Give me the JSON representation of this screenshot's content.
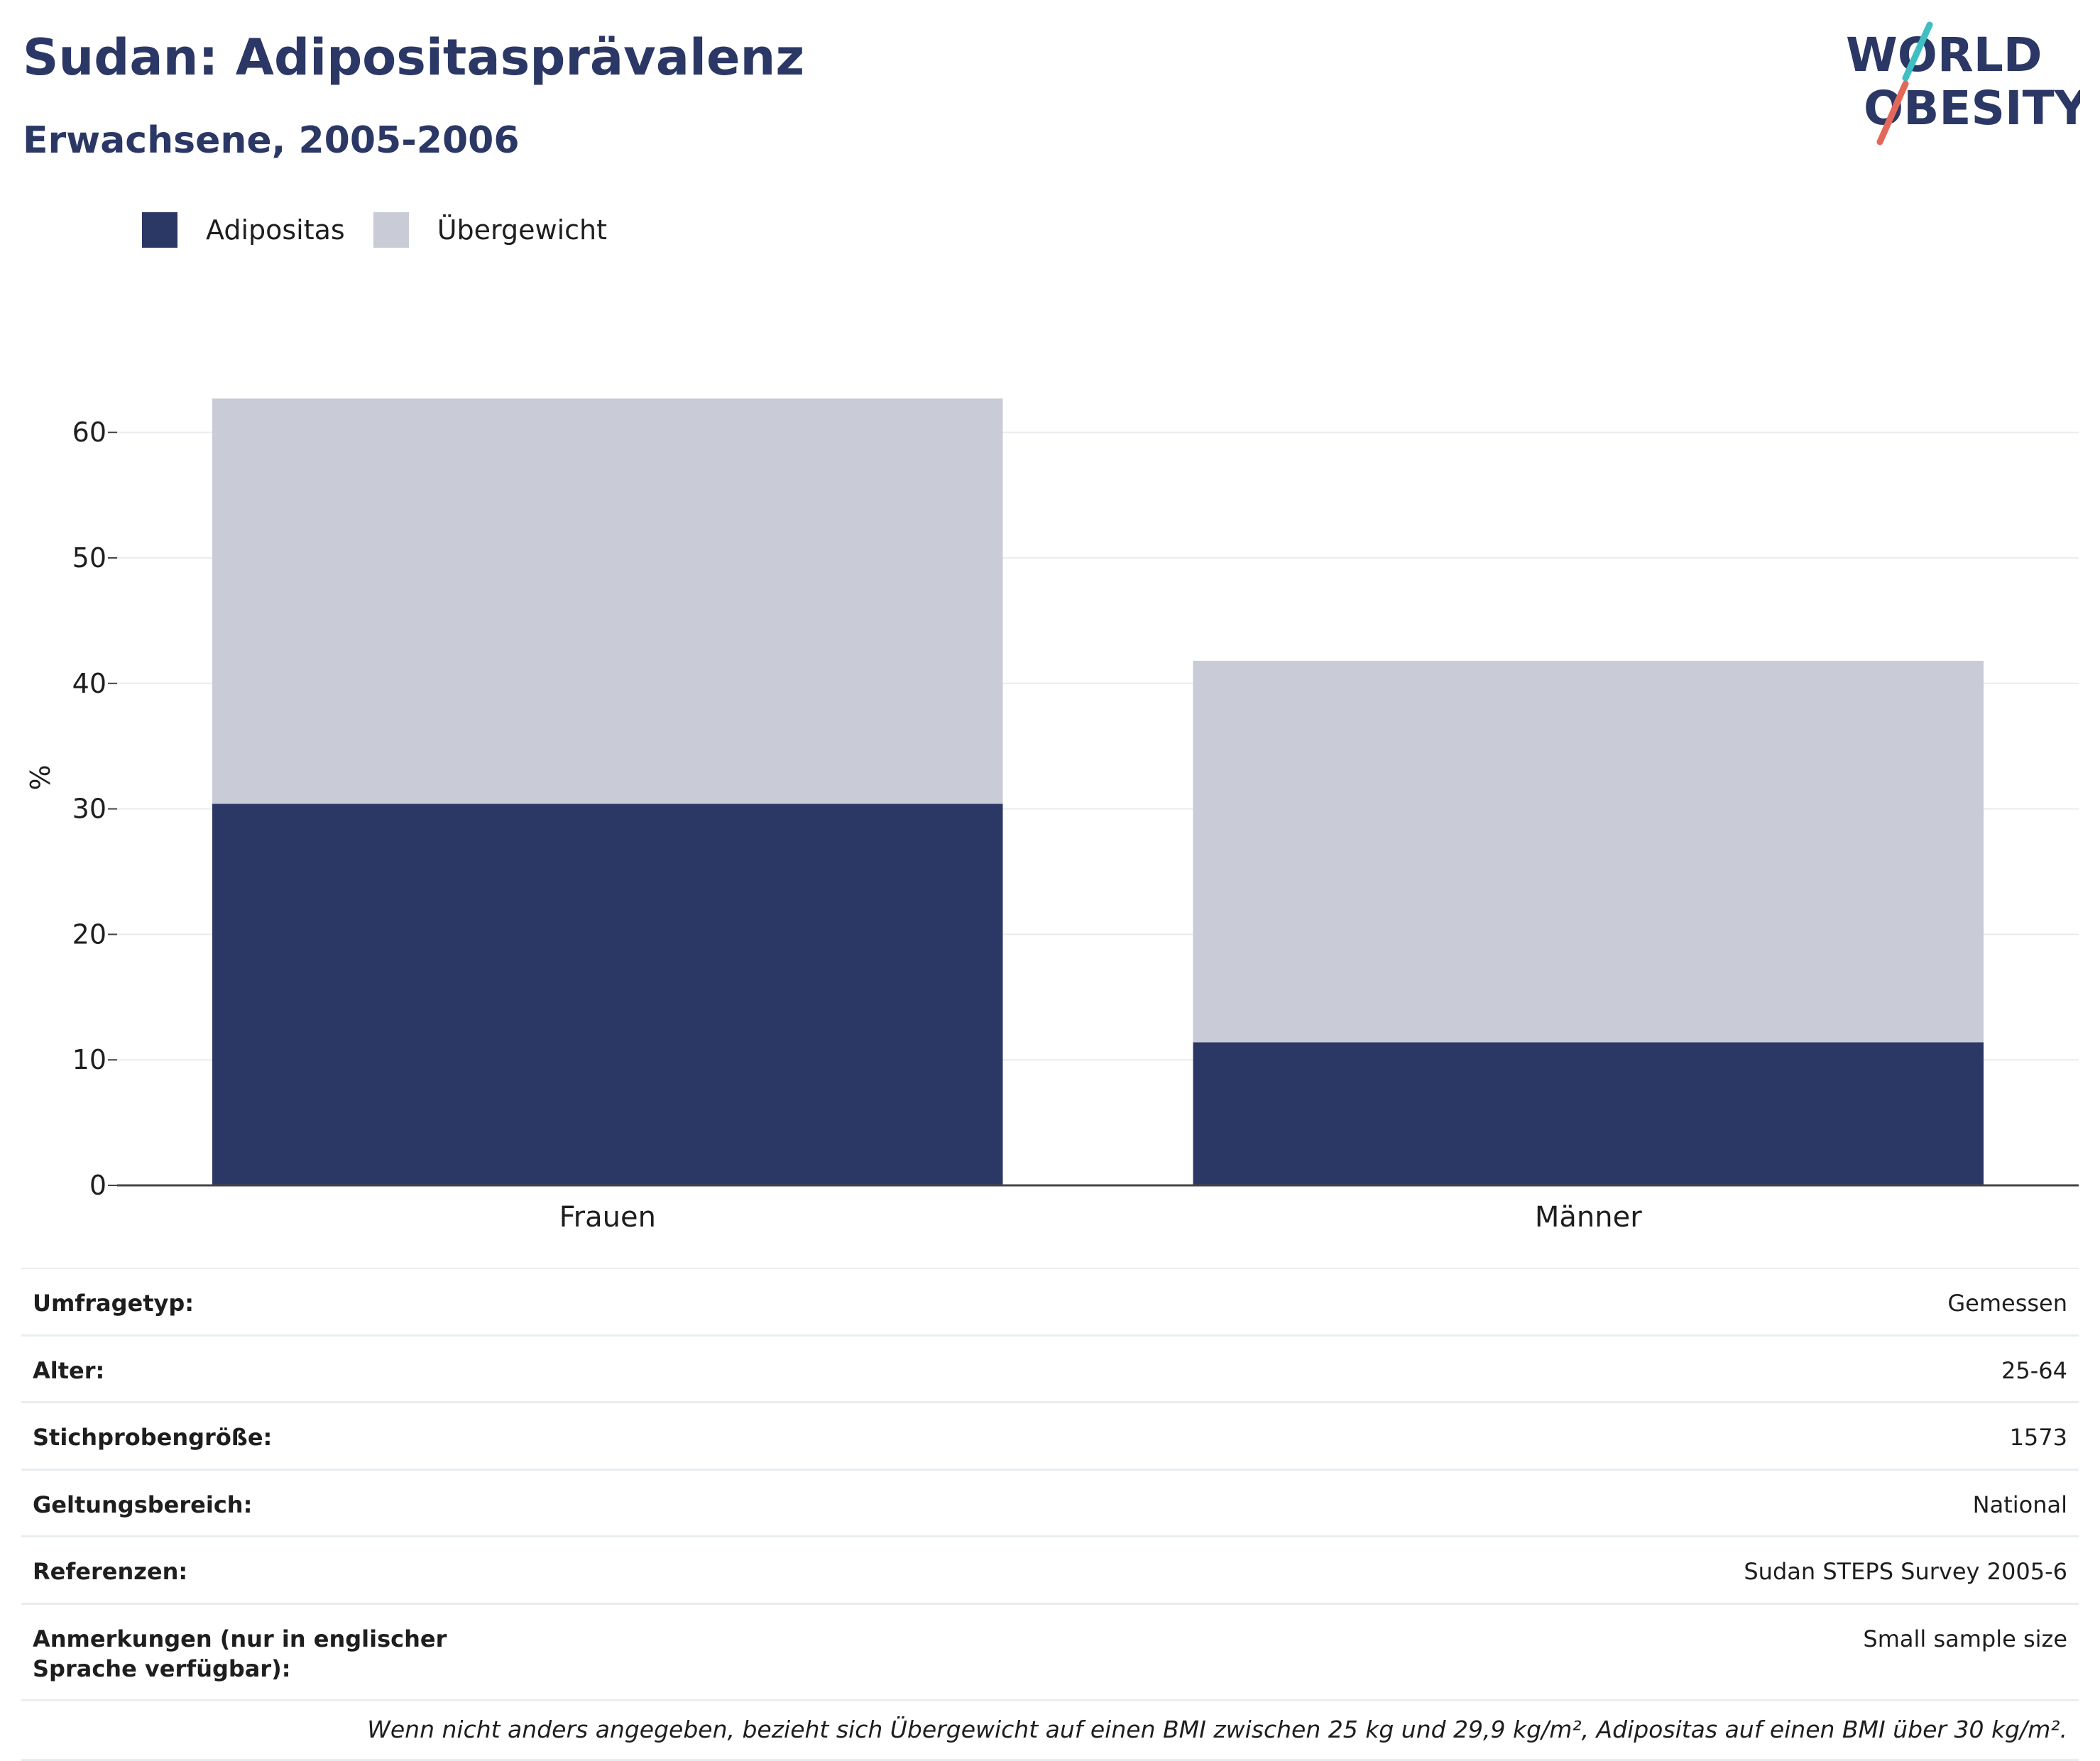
{
  "header": {
    "title": "Sudan: Adipositasprävalenz",
    "subtitle": "Erwachsene, 2005-2006",
    "logo_text_line1": "WORLD",
    "logo_text_line2": "OBESITY"
  },
  "legend": {
    "items": [
      {
        "label": "Adipositas",
        "color": "#2b3765"
      },
      {
        "label": "Übergewicht",
        "color": "#c9cbd6"
      }
    ]
  },
  "chart_data": {
    "type": "bar",
    "stacked": true,
    "categories": [
      "Frauen",
      "Männer"
    ],
    "series": [
      {
        "name": "Adipositas",
        "values": [
          30.4,
          11.4
        ],
        "color": "#2b3765"
      },
      {
        "name": "Übergewicht",
        "values": [
          32.3,
          30.4
        ],
        "color": "#c9cbd6"
      }
    ],
    "ylabel": "%",
    "ylim": [
      0,
      65
    ],
    "yticks": [
      0,
      10,
      20,
      30,
      40,
      50,
      60
    ],
    "grid": true,
    "legend_position": "top-left"
  },
  "meta": {
    "rows": [
      {
        "key": "Umfragetyp:",
        "value": "Gemessen"
      },
      {
        "key": "Alter:",
        "value": "25-64"
      },
      {
        "key": "Stichprobengröße:",
        "value": "1573"
      },
      {
        "key": "Geltungsbereich:",
        "value": "National"
      },
      {
        "key": "Referenzen:",
        "value": "Sudan STEPS Survey 2005-6"
      },
      {
        "key": "Anmerkungen (nur in englischer Sprache verfügbar):",
        "value": "Small sample size"
      }
    ],
    "footnote": "Wenn nicht anders angegeben, bezieht sich Übergewicht auf einen BMI zwischen 25 kg und 29,9 kg/m², Adipositas auf einen BMI über 30 kg/m²."
  }
}
